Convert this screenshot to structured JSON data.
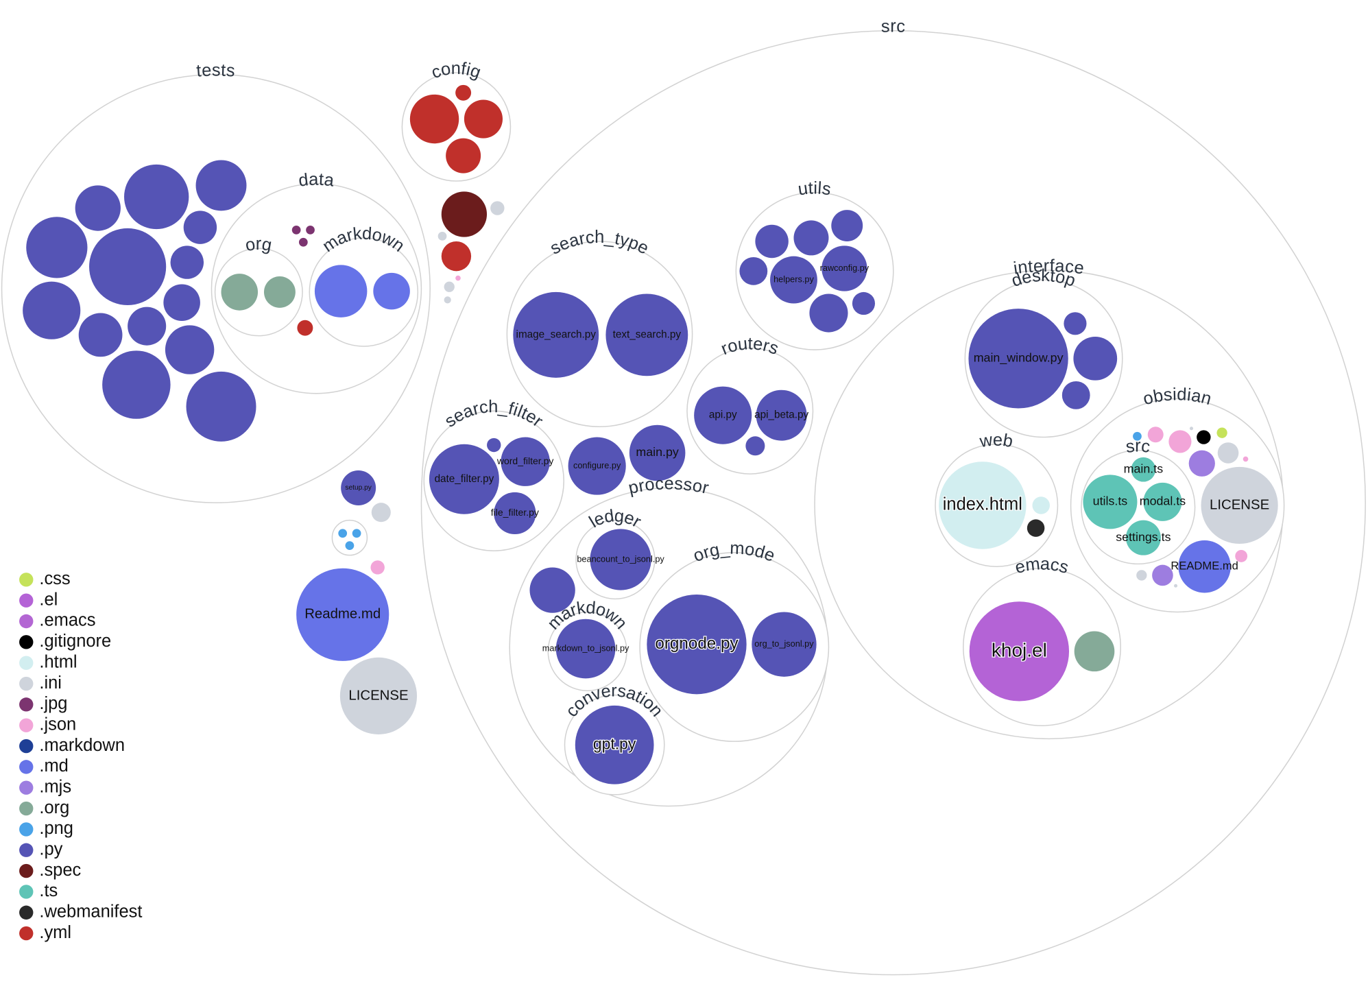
{
  "folders": [
    {
      "label": "tests"
    },
    {
      "label": "config"
    },
    {
      "label": "data"
    },
    {
      "label": "org"
    },
    {
      "label": "markdown"
    },
    {
      "label": "src"
    },
    {
      "label": "utils"
    },
    {
      "label": "search_type"
    },
    {
      "label": "routers"
    },
    {
      "label": "search_filter"
    },
    {
      "label": "processor"
    },
    {
      "label": "ledger"
    },
    {
      "label": "markdown"
    },
    {
      "label": "org_mode"
    },
    {
      "label": "conversation"
    },
    {
      "label": "interface"
    },
    {
      "label": "desktop"
    },
    {
      "label": "web"
    },
    {
      "label": "obsidian"
    },
    {
      "label": "src"
    },
    {
      "label": "emacs"
    }
  ],
  "files": [
    {
      "label": "image_search.py"
    },
    {
      "label": "text_search.py"
    },
    {
      "label": "helpers.py"
    },
    {
      "label": "rawconfig.py"
    },
    {
      "label": "api.py"
    },
    {
      "label": "api_beta.py"
    },
    {
      "label": "date_filter.py"
    },
    {
      "label": "word_filter.py"
    },
    {
      "label": "file_filter.py"
    },
    {
      "label": "configure.py"
    },
    {
      "label": "main.py"
    },
    {
      "label": "setup.py"
    },
    {
      "label": "beancount_to_jsonl.py"
    },
    {
      "label": "markdown_to_jsonl.py"
    },
    {
      "label": "orgnode.py"
    },
    {
      "label": "org_to_jsonl.py"
    },
    {
      "label": "gpt.py"
    },
    {
      "label": "main_window.py"
    },
    {
      "label": "index.html"
    },
    {
      "label": "main.ts"
    },
    {
      "label": "utils.ts"
    },
    {
      "label": "modal.ts"
    },
    {
      "label": "settings.ts"
    },
    {
      "label": "LICENSE"
    },
    {
      "label": "README.md"
    },
    {
      "label": "khoj.el"
    },
    {
      "label": "Readme.md"
    },
    {
      "label": "LICENSE"
    }
  ],
  "legend": [
    {
      "label": ".css",
      "color": "#c5e25a"
    },
    {
      "label": ".el",
      "color": "#b463d6"
    },
    {
      "label": ".emacs",
      "color": "#b366d3"
    },
    {
      "label": ".gitignore",
      "color": "#000000"
    },
    {
      "label": ".html",
      "color": "#d2eef0"
    },
    {
      "label": ".ini",
      "color": "#cfd4dc"
    },
    {
      "label": ".jpg",
      "color": "#7c3470"
    },
    {
      "label": ".json",
      "color": "#f2a5d8"
    },
    {
      "label": ".markdown",
      "color": "#1e3f96"
    },
    {
      "label": ".md",
      "color": "#6673e8"
    },
    {
      "label": ".mjs",
      "color": "#9d7de0"
    },
    {
      "label": ".org",
      "color": "#85aa98"
    },
    {
      "label": ".png",
      "color": "#4aa3e8"
    },
    {
      "label": ".py",
      "color": "#5554b5"
    },
    {
      "label": ".spec",
      "color": "#6b1c1c"
    },
    {
      "label": ".ts",
      "color": "#5ec4b6"
    },
    {
      "label": ".webmanifest",
      "color": "#2a2a2a"
    },
    {
      "label": ".yml",
      "color": "#c0302b"
    }
  ]
}
